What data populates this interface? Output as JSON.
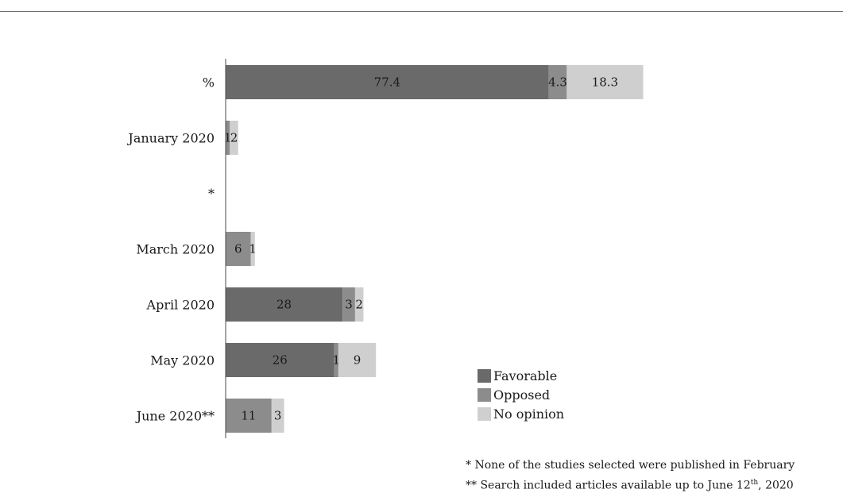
{
  "chart_data": {
    "type": "bar",
    "orientation": "horizontal",
    "stacked": true,
    "categories": [
      "%",
      "January 2020",
      "*",
      "March 2020",
      "April 2020",
      "May 2020",
      "June 2020**"
    ],
    "series": [
      {
        "name": "Favorable",
        "color": "#6a6a6a",
        "values": [
          77.4,
          0,
          0,
          0,
          28,
          26,
          0
        ],
        "labels": [
          "77.4",
          "",
          "",
          "",
          "28",
          "26",
          ""
        ]
      },
      {
        "name": "Opposed",
        "color": "#8c8c8c",
        "values": [
          4.3,
          1,
          0,
          6,
          3,
          1,
          11
        ],
        "labels": [
          "4.3",
          "1",
          "",
          "6",
          "3",
          "1",
          "11"
        ]
      },
      {
        "name": "No opinion",
        "color": "#cfcfcf",
        "values": [
          18.3,
          2,
          0,
          1,
          2,
          9,
          3
        ],
        "labels": [
          "18.3",
          "2",
          "",
          "1",
          "2",
          "9",
          "3"
        ]
      }
    ],
    "legend_position": "bottom-right"
  },
  "legend": {
    "items": [
      {
        "label": "Favorable",
        "color": "#6a6a6a"
      },
      {
        "label": "Opposed",
        "color": "#8c8c8c"
      },
      {
        "label": "No opinion",
        "color": "#cfcfcf"
      }
    ]
  },
  "notes": {
    "line1": "* None of the studies selected were published in February",
    "line2_prefix": "** Search included articles available up to June 12",
    "line2_sup": "th",
    "line2_suffix": ", 2020"
  }
}
